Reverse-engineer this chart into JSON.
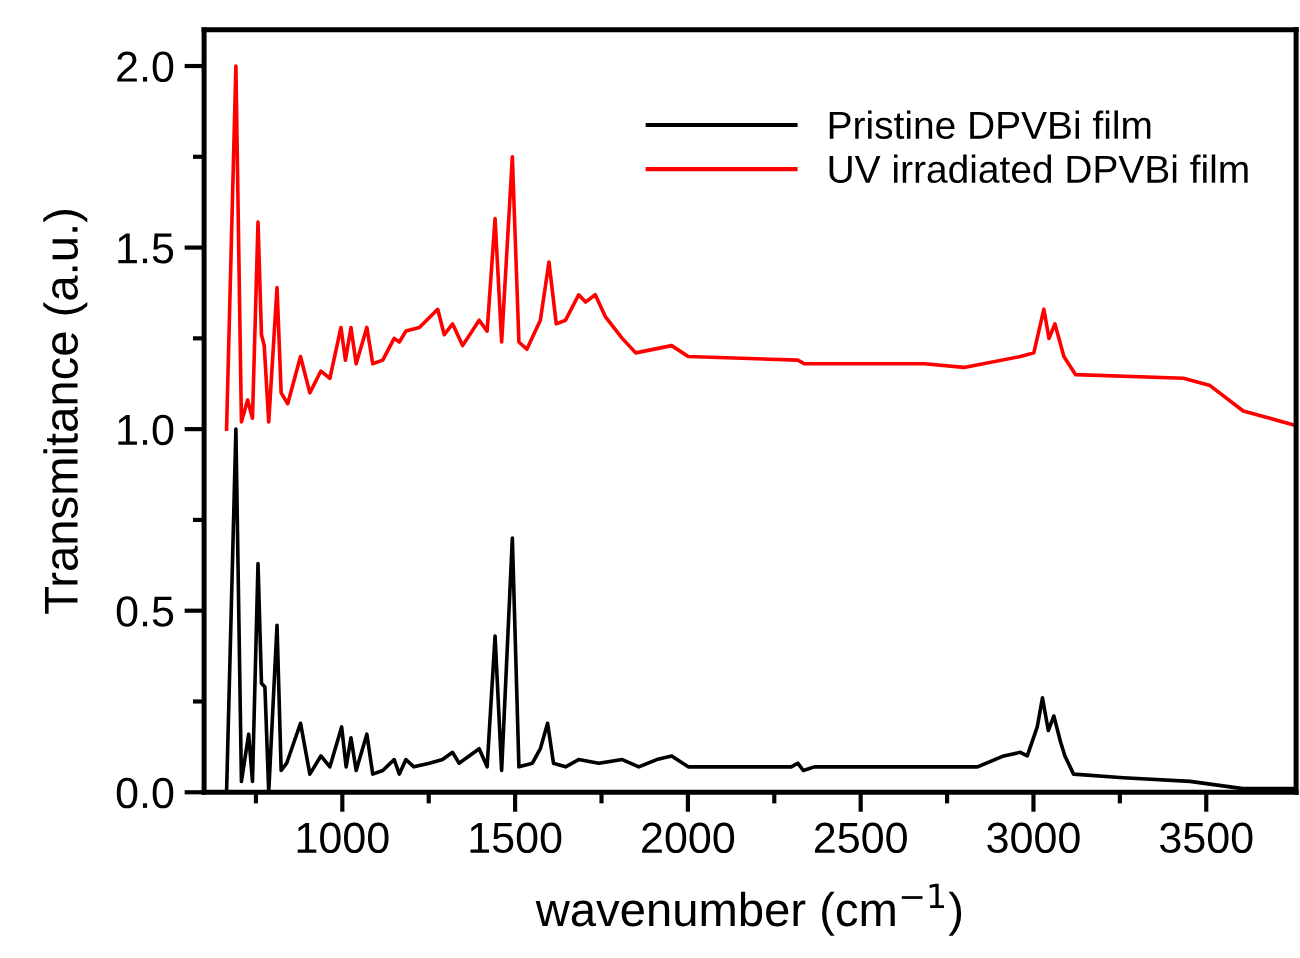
{
  "chart_data": {
    "type": "line",
    "xlabel": "wavenumber (cm$^{−1}$)",
    "ylabel": "Transmitance (a.u.)",
    "xlim": [
      600,
      3760
    ],
    "ylim": [
      0,
      2.1
    ],
    "xticks": [
      {
        "value": 750,
        "label": null
      },
      1000,
      {
        "value": 1250,
        "label": null
      },
      1500,
      {
        "value": 1750,
        "label": null
      },
      2000,
      {
        "value": 2250,
        "label": null
      },
      2500,
      {
        "value": 2750,
        "label": null
      },
      3000,
      {
        "value": 3250,
        "label": null
      },
      3500
    ],
    "yticks": [
      {
        "value": 0,
        "label": "0.0"
      },
      {
        "value": 0.25,
        "label": null
      },
      {
        "value": 0.5,
        "label": "0.5"
      },
      {
        "value": 0.75,
        "label": null
      },
      {
        "value": 1.0,
        "label": "1.0"
      },
      {
        "value": 1.25,
        "label": null
      },
      {
        "value": 1.5,
        "label": "1.5"
      },
      {
        "value": 1.75,
        "label": null
      },
      {
        "value": 2.0,
        "label": "2.0"
      }
    ],
    "grid": false,
    "legend": "top right",
    "marker": "none",
    "line_style": "solid",
    "series": [
      {
        "name": "Pristine DPVBi film",
        "color": "#000000",
        "x": [
          665,
          692,
          708,
          729,
          740,
          756,
          766,
          776,
          787,
          811,
          823,
          839,
          879,
          906,
          938,
          964,
          998,
          1011,
          1025,
          1040,
          1071,
          1088,
          1117,
          1150,
          1165,
          1184,
          1207,
          1252,
          1290,
          1319,
          1338,
          1396,
          1419,
          1442,
          1461,
          1492,
          1511,
          1550,
          1573,
          1594,
          1611,
          1646,
          1684,
          1742,
          1810,
          1858,
          1910,
          1953,
          2001,
          2299,
          2318,
          2334,
          2366,
          2684,
          2838,
          2914,
          2962,
          2982,
          3011,
          3026,
          3043,
          3059,
          3078,
          3091,
          3116,
          3260,
          3453,
          3606,
          3760
        ],
        "values": [
          0.0,
          1.0,
          0.03,
          0.16,
          0.03,
          0.63,
          0.3,
          0.29,
          0.0,
          0.46,
          0.06,
          0.08,
          0.19,
          0.05,
          0.1,
          0.07,
          0.18,
          0.07,
          0.15,
          0.06,
          0.16,
          0.05,
          0.06,
          0.09,
          0.05,
          0.09,
          0.07,
          0.08,
          0.09,
          0.11,
          0.08,
          0.12,
          0.07,
          0.43,
          0.06,
          0.7,
          0.07,
          0.08,
          0.12,
          0.19,
          0.08,
          0.07,
          0.09,
          0.08,
          0.09,
          0.07,
          0.09,
          0.1,
          0.07,
          0.07,
          0.08,
          0.06,
          0.07,
          0.07,
          0.07,
          0.1,
          0.11,
          0.1,
          0.18,
          0.26,
          0.17,
          0.21,
          0.14,
          0.1,
          0.05,
          0.04,
          0.03,
          0.01,
          0.01
        ]
      },
      {
        "name": "UV irradiated DPVBi film",
        "color": "#ff0000",
        "x": [
          665,
          692,
          708,
          726,
          740,
          756,
          766,
          774,
          787,
          811,
          823,
          842,
          879,
          906,
          938,
          964,
          996,
          1009,
          1025,
          1040,
          1071,
          1088,
          1117,
          1150,
          1165,
          1184,
          1223,
          1276,
          1295,
          1319,
          1348,
          1396,
          1419,
          1442,
          1461,
          1492,
          1511,
          1534,
          1573,
          1598,
          1619,
          1646,
          1684,
          1704,
          1732,
          1761,
          1810,
          1849,
          1953,
          2001,
          2318,
          2337,
          2684,
          2799,
          2962,
          3001,
          3030,
          3045,
          3062,
          3088,
          3122,
          3434,
          3511,
          3607,
          3684,
          3760
        ],
        "values": [
          1.0,
          2.0,
          1.02,
          1.08,
          1.03,
          1.57,
          1.26,
          1.23,
          1.02,
          1.39,
          1.1,
          1.07,
          1.2,
          1.1,
          1.16,
          1.14,
          1.28,
          1.19,
          1.28,
          1.18,
          1.28,
          1.18,
          1.19,
          1.25,
          1.24,
          1.27,
          1.28,
          1.33,
          1.26,
          1.29,
          1.23,
          1.3,
          1.27,
          1.58,
          1.24,
          1.75,
          1.24,
          1.22,
          1.3,
          1.46,
          1.29,
          1.3,
          1.37,
          1.35,
          1.37,
          1.31,
          1.25,
          1.21,
          1.23,
          1.2,
          1.19,
          1.18,
          1.18,
          1.17,
          1.2,
          1.21,
          1.33,
          1.25,
          1.29,
          1.2,
          1.15,
          1.14,
          1.12,
          1.05,
          1.03,
          1.01
        ]
      }
    ]
  }
}
